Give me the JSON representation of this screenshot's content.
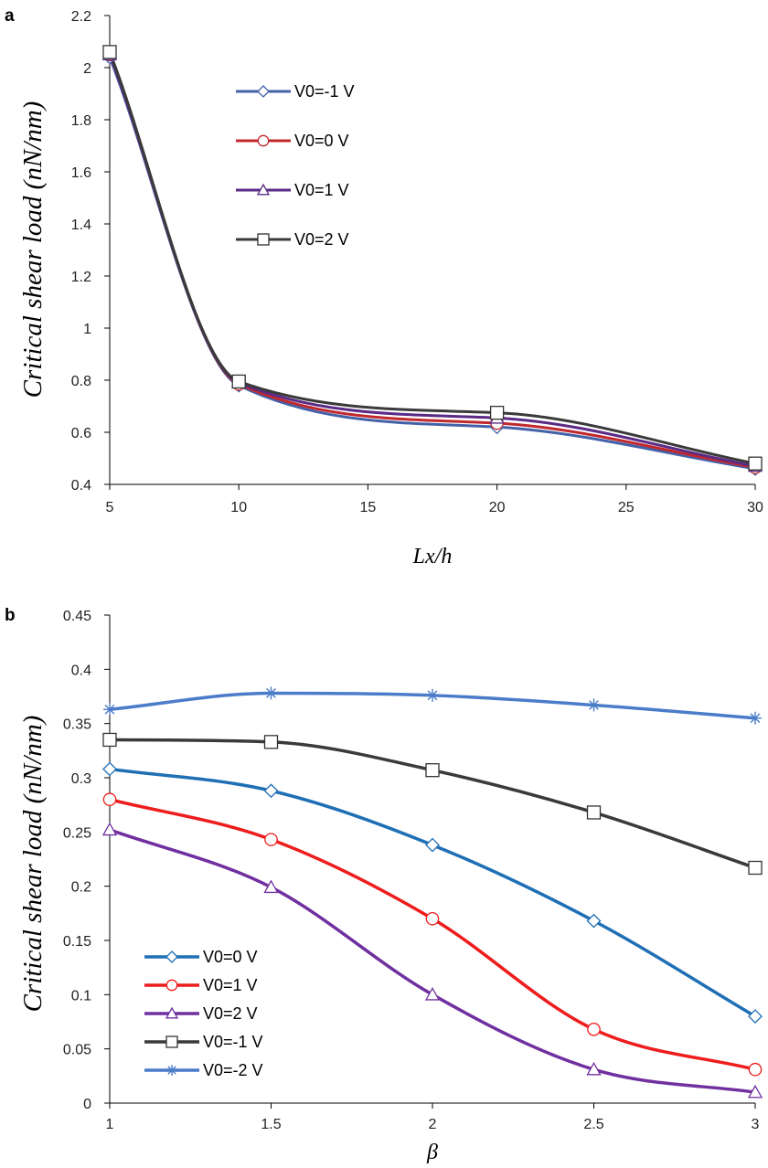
{
  "chart_data": [
    {
      "type": "line",
      "panel_label": "a",
      "xlabel": "Lx/h",
      "ylabel": "Critical shear load (nN/nm)",
      "x": [
        5,
        10,
        20,
        30
      ],
      "xlim": [
        5,
        30
      ],
      "ylim": [
        0.4,
        2.2
      ],
      "xticks": [
        "5",
        "10",
        "15",
        "20",
        "25",
        "30"
      ],
      "yticks": [
        "0.4",
        "0.6",
        "0.8",
        "1",
        "1.2",
        "1.4",
        "1.6",
        "1.8",
        "2",
        "2.2"
      ],
      "grid": false,
      "legend_position": "upper-middle",
      "series": [
        {
          "name": "V0=-1 V",
          "marker": "diamond",
          "color": "#4361a8",
          "values": [
            2.04,
            0.78,
            0.62,
            0.46
          ]
        },
        {
          "name": "V0=0 V",
          "marker": "circle",
          "color": "#c0282d",
          "values": [
            2.05,
            0.785,
            0.635,
            0.465
          ]
        },
        {
          "name": "V0=1 V",
          "marker": "triangle",
          "color": "#5b2a86",
          "values": [
            2.05,
            0.79,
            0.655,
            0.47
          ]
        },
        {
          "name": "V0=2 V",
          "marker": "square",
          "color": "#3a3a3a",
          "values": [
            2.06,
            0.795,
            0.675,
            0.48
          ]
        }
      ]
    },
    {
      "type": "line",
      "panel_label": "b",
      "xlabel": "β",
      "ylabel": "Critical shear load (nN/nm)",
      "x": [
        1,
        1.5,
        2,
        2.5,
        3
      ],
      "xlim": [
        1,
        3
      ],
      "ylim": [
        0,
        0.45
      ],
      "xticks": [
        "1",
        "1.5",
        "2",
        "2.5",
        "3"
      ],
      "yticks": [
        "0",
        "0.05",
        "0.1",
        "0.15",
        "0.2",
        "0.25",
        "0.3",
        "0.35",
        "0.4",
        "0.45"
      ],
      "grid": false,
      "legend_position": "lower-left",
      "series": [
        {
          "name": "V0=0 V",
          "marker": "diamond",
          "color": "#1f6fb5",
          "values": [
            0.308,
            0.288,
            0.238,
            0.168,
            0.08
          ]
        },
        {
          "name": "V0=1 V",
          "marker": "circle",
          "color": "#ee1c1c",
          "values": [
            0.28,
            0.243,
            0.17,
            0.068,
            0.031
          ]
        },
        {
          "name": "V0=2 V",
          "marker": "triangle",
          "color": "#7030a0",
          "values": [
            0.252,
            0.199,
            0.1,
            0.031,
            0.01
          ]
        },
        {
          "name": "V0=-1 V",
          "marker": "square",
          "color": "#3a3a3a",
          "values": [
            0.335,
            0.333,
            0.307,
            0.268,
            0.217
          ]
        },
        {
          "name": "V0=-2 V",
          "marker": "asterisk",
          "color": "#4a7cc9",
          "values": [
            0.363,
            0.378,
            0.376,
            0.367,
            0.355
          ]
        }
      ]
    }
  ]
}
